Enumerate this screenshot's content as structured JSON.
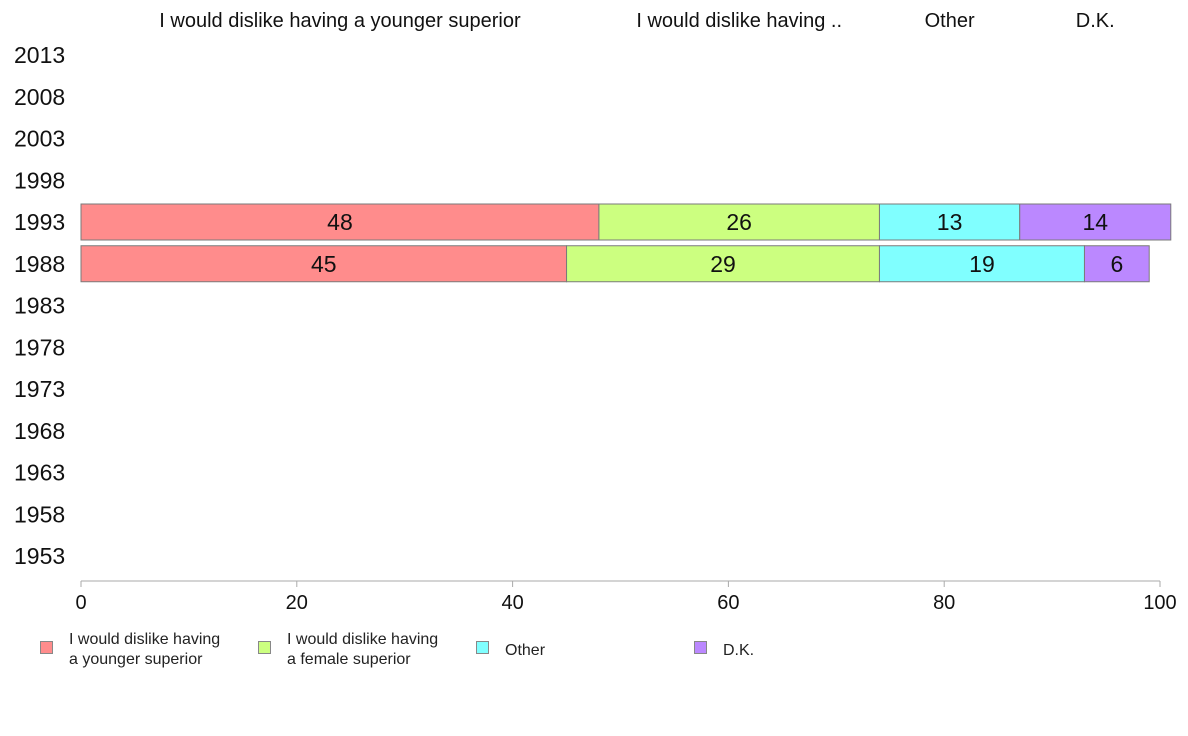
{
  "chart_data": {
    "type": "bar",
    "orientation": "horizontal",
    "stacked": true,
    "categories": [
      "2013",
      "2008",
      "2003",
      "1998",
      "1993",
      "1988",
      "1983",
      "1978",
      "1973",
      "1968",
      "1963",
      "1958",
      "1953"
    ],
    "series": [
      {
        "name": "I would dislike having a younger superior",
        "header": "I would dislike having a younger superior",
        "legend": "I would dislike having\na younger superior",
        "color": "#ff8c8c",
        "values": [
          null,
          null,
          null,
          null,
          48,
          45,
          null,
          null,
          null,
          null,
          null,
          null,
          null
        ]
      },
      {
        "name": "I would dislike having a female superior",
        "header": "I would dislike having ..",
        "legend": "I would dislike having\na female superior",
        "color": "#ccff80",
        "values": [
          null,
          null,
          null,
          null,
          26,
          29,
          null,
          null,
          null,
          null,
          null,
          null,
          null
        ]
      },
      {
        "name": "Other",
        "header": "Other",
        "legend": "Other",
        "color": "#80ffff",
        "values": [
          null,
          null,
          null,
          null,
          13,
          19,
          null,
          null,
          null,
          null,
          null,
          null,
          null
        ]
      },
      {
        "name": "D.K.",
        "header": "D.K.",
        "legend": "D.K.",
        "color": "#bb88ff",
        "values": [
          null,
          null,
          null,
          null,
          14,
          6,
          null,
          null,
          null,
          null,
          null,
          null,
          null
        ]
      }
    ],
    "xlim": [
      0,
      100
    ],
    "xticks": [
      0,
      20,
      40,
      60,
      80,
      100
    ],
    "grid": false,
    "legend_position": "bottom"
  }
}
